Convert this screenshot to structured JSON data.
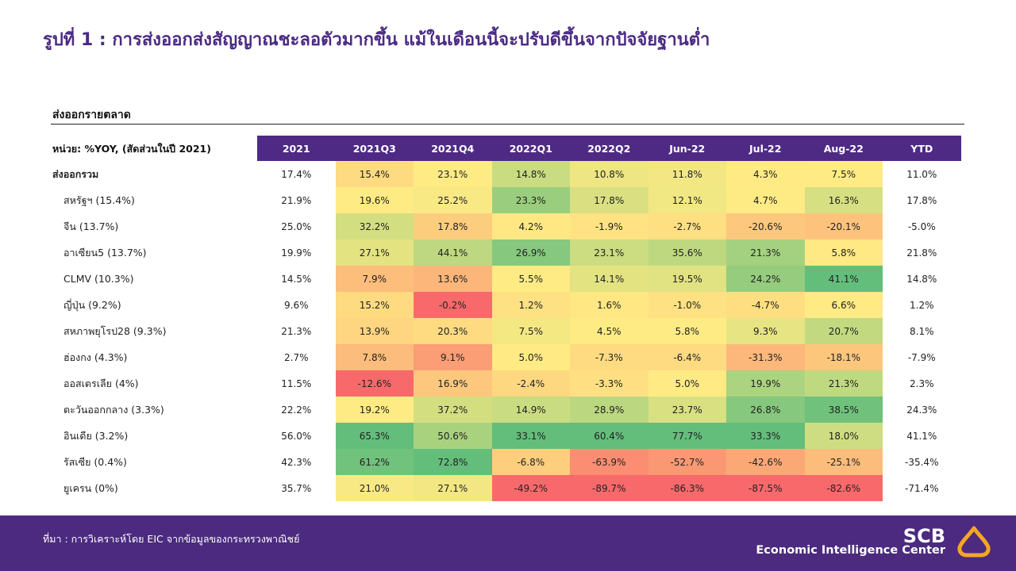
{
  "title": "รูปที่ 1 : การส่งออกส่งสัญญาณชะลอตัวมากขึ้น แม้ในเดือนนี้จะปรับดีขึ้นจากปัจจัยฐานต่ำ",
  "section_title": "ส่งออกรายตลาด",
  "unit_label": "หน่วย: %YOY, (สัดส่วนในปี 2021)",
  "footer": {
    "source": "ที่มา : การวิเคราะห์โดย EIC จากข้อมูลของกระทรวงพาณิชย์",
    "logo_scb": "SCB",
    "logo_eic": "Economic Intelligence Center",
    "logo_color": "#f5a623"
  },
  "colors": {
    "header": "#4e2a84",
    "low": "#f8696b",
    "mid": "#ffeb84",
    "high": "#63be7b"
  },
  "chart_data": {
    "type": "heatmap",
    "columns": [
      "2021",
      "2021Q3",
      "2021Q4",
      "2022Q1",
      "2022Q2",
      "Jun-22",
      "Jul-22",
      "Aug-22",
      "YTD"
    ],
    "heat_columns": [
      "2021Q3",
      "2021Q4",
      "2022Q1",
      "2022Q2",
      "Jun-22",
      "Jul-22",
      "Aug-22"
    ],
    "rows": [
      {
        "label": "ส่งออกรวม",
        "values": [
          17.4,
          15.4,
          23.1,
          14.8,
          10.8,
          11.8,
          4.3,
          7.5,
          11.0
        ]
      },
      {
        "label": "สหรัฐฯ (15.4%)",
        "values": [
          21.9,
          19.6,
          25.2,
          23.3,
          17.8,
          12.1,
          4.7,
          16.3,
          17.8
        ]
      },
      {
        "label": "จีน (13.7%)",
        "values": [
          25.0,
          32.2,
          17.8,
          4.2,
          -1.9,
          -2.7,
          -20.6,
          -20.1,
          -5.0
        ]
      },
      {
        "label": "อาเซียน5 (13.7%)",
        "values": [
          19.9,
          27.1,
          44.1,
          26.9,
          23.1,
          35.6,
          21.3,
          5.8,
          21.8
        ]
      },
      {
        "label": "CLMV (10.3%)",
        "values": [
          14.5,
          7.9,
          13.6,
          5.5,
          14.1,
          19.5,
          24.2,
          41.1,
          14.8
        ]
      },
      {
        "label": "ญี่ปุ่น (9.2%)",
        "values": [
          9.6,
          15.2,
          -0.2,
          1.2,
          1.6,
          -1.0,
          -4.7,
          6.6,
          1.2
        ]
      },
      {
        "label": "สหภาพยุโรป28 (9.3%)",
        "values": [
          21.3,
          13.9,
          20.3,
          7.5,
          4.5,
          5.8,
          9.3,
          20.7,
          8.1
        ]
      },
      {
        "label": "ฮ่องกง (4.3%)",
        "values": [
          2.7,
          7.8,
          9.1,
          5.0,
          -7.3,
          -6.4,
          -31.3,
          -18.1,
          -7.9
        ]
      },
      {
        "label": "ออสเตรเลีย (4%)",
        "values": [
          11.5,
          -12.6,
          16.9,
          -2.4,
          -3.3,
          5.0,
          19.9,
          21.3,
          2.3
        ]
      },
      {
        "label": "ตะวันออกกลาง (3.3%)",
        "values": [
          22.2,
          19.2,
          37.2,
          14.9,
          28.9,
          23.7,
          26.8,
          38.5,
          24.3
        ]
      },
      {
        "label": "อินเดีย (3.2%)",
        "values": [
          56.0,
          65.3,
          50.6,
          33.1,
          60.4,
          77.7,
          33.3,
          18.0,
          41.1
        ]
      },
      {
        "label": "รัสเซีย (0.4%)",
        "values": [
          42.3,
          61.2,
          72.8,
          -6.8,
          -63.9,
          -52.7,
          -42.6,
          -25.1,
          -35.4
        ]
      },
      {
        "label": "ยูเครน (0%)",
        "values": [
          35.7,
          21.0,
          27.1,
          -49.2,
          -89.7,
          -86.3,
          -87.5,
          -82.6,
          -71.4
        ]
      }
    ]
  }
}
